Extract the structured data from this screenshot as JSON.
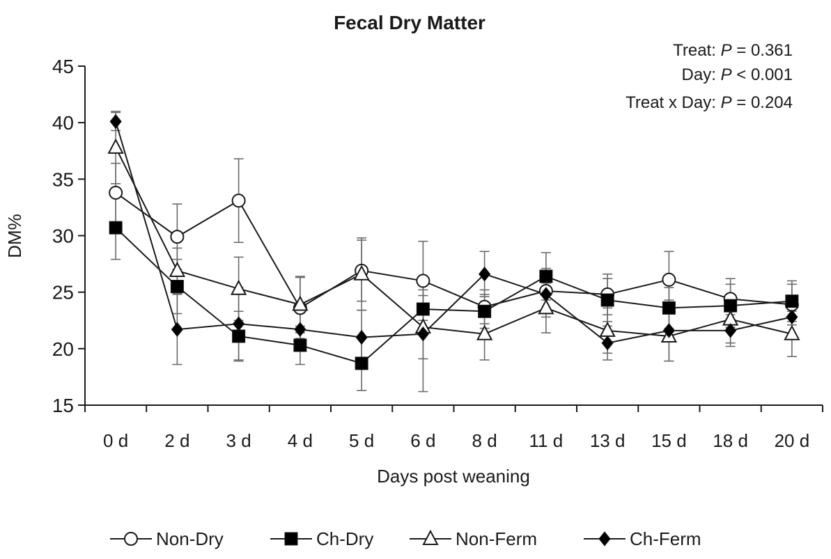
{
  "chart_data": {
    "type": "line",
    "title": "Fecal Dry Matter",
    "xlabel": "Days post weaning",
    "ylabel": "DM%",
    "ylim": [
      15,
      45
    ],
    "yticks": [
      "15",
      "20",
      "25",
      "30",
      "35",
      "40",
      "45"
    ],
    "categories": [
      "0 d",
      "2 d",
      "3 d",
      "4 d",
      "5 d",
      "6 d",
      "8 d",
      "11 d",
      "13 d",
      "15 d",
      "18 d",
      "20 d"
    ],
    "series": [
      {
        "name": "Non-Dry",
        "marker": "circle-open",
        "values": [
          33.8,
          29.9,
          33.1,
          23.6,
          26.9,
          26.0,
          23.7,
          25.1,
          24.8,
          26.1,
          24.4,
          23.9
        ],
        "errors": [
          2.6,
          2.9,
          3.7,
          2.7,
          2.7,
          3.5,
          1.5,
          2.0,
          1.8,
          2.5,
          1.8,
          1.8
        ]
      },
      {
        "name": "Ch-Dry",
        "marker": "square-filled",
        "values": [
          30.7,
          25.5,
          21.1,
          20.3,
          18.7,
          23.5,
          23.3,
          26.4,
          24.3,
          23.6,
          23.8,
          24.2
        ],
        "errors": [
          2.8,
          2.4,
          2.2,
          1.7,
          2.4,
          1.7,
          1.5,
          2.1,
          1.9,
          1.8,
          1.9,
          1.8
        ]
      },
      {
        "name": "Non-Ferm",
        "marker": "triangle-open",
        "values": [
          37.8,
          26.9,
          25.3,
          23.9,
          26.6,
          21.9,
          21.3,
          23.6,
          21.6,
          21.1,
          22.6,
          21.3
        ],
        "errors": [
          3.2,
          2.0,
          2.8,
          2.5,
          3.2,
          2.8,
          2.3,
          2.2,
          2.0,
          2.2,
          2.1,
          2.0
        ]
      },
      {
        "name": "Ch-Ferm",
        "marker": "diamond-filled",
        "values": [
          40.1,
          21.7,
          22.2,
          21.7,
          21.0,
          21.3,
          26.6,
          24.8,
          20.5,
          21.6,
          21.6,
          22.8
        ],
        "errors": [
          0.8,
          3.1,
          3.2,
          1.7,
          2.4,
          5.1,
          2.0,
          2.0,
          1.5,
          2.7,
          1.4,
          1.7
        ]
      }
    ],
    "annotations": {
      "treat": {
        "label": "Treat: ",
        "p": "P",
        "rel": " = ",
        "value": "0.361"
      },
      "day": {
        "label": "Day: ",
        "p": "P",
        "rel": " < ",
        "value": "0.001"
      },
      "treat_day": {
        "label": "Treat x Day: ",
        "p": "P",
        "rel": " = ",
        "value": "0.204"
      }
    },
    "grid": false,
    "legend_position": "bottom"
  }
}
